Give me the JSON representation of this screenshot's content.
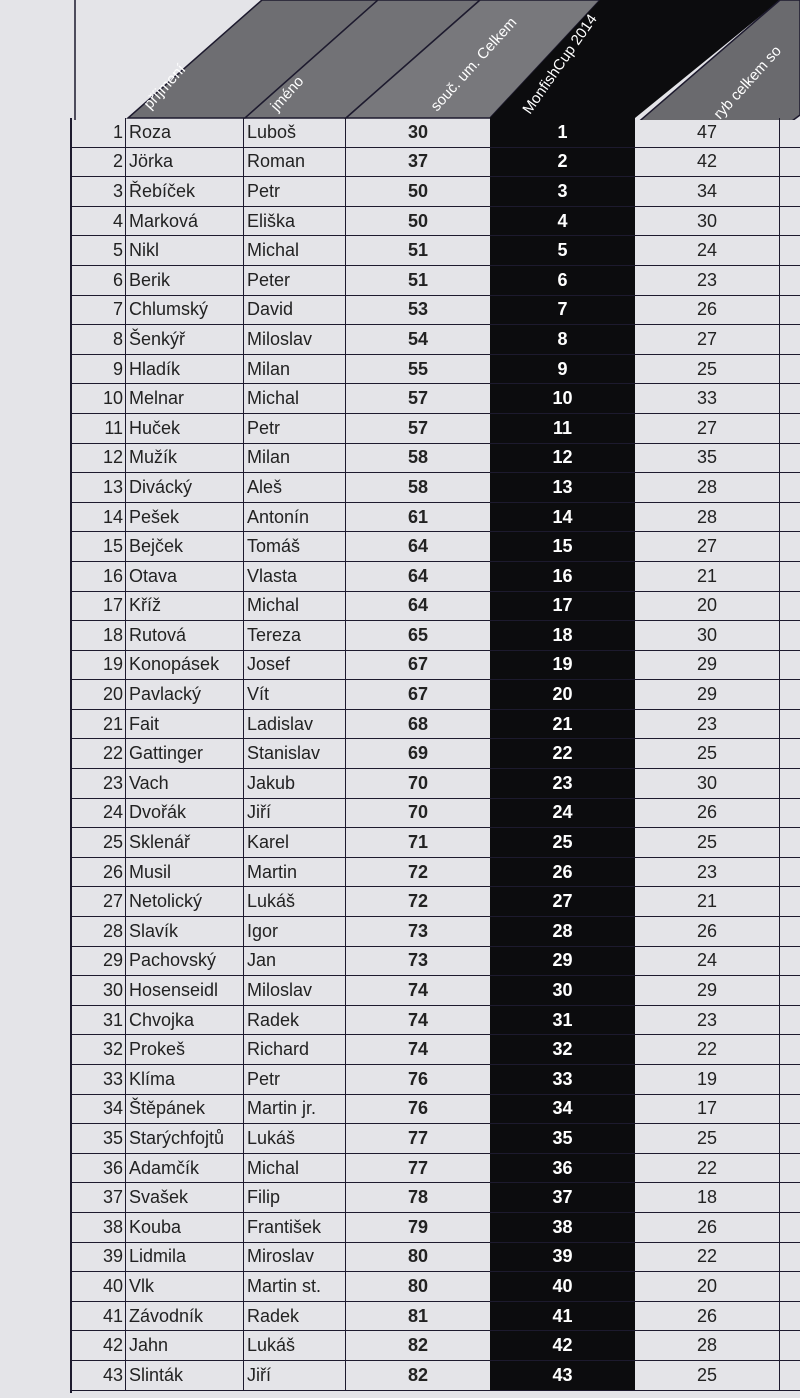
{
  "header": {
    "surname": "příjmení",
    "first_name": "jméno",
    "score_total": "souč. um. Celkem",
    "cup": "MonfishCup 2014",
    "fish_total": "ryb celkem so"
  },
  "colors": {
    "band": "#0c0c0e",
    "header_gray": "#6e6e72",
    "paper": "#e4e4e8"
  },
  "rows": [
    [
      "1",
      "Roza",
      "Luboš",
      "30",
      "1",
      "47"
    ],
    [
      "2",
      "Jörka",
      "Roman",
      "37",
      "2",
      "42"
    ],
    [
      "3",
      "Řebíček",
      "Petr",
      "50",
      "3",
      "34"
    ],
    [
      "4",
      "Marková",
      "Eliška",
      "50",
      "4",
      "30"
    ],
    [
      "5",
      "Nikl",
      "Michal",
      "51",
      "5",
      "24"
    ],
    [
      "6",
      "Berik",
      "Peter",
      "51",
      "6",
      "23"
    ],
    [
      "7",
      "Chlumský",
      "David",
      "53",
      "7",
      "26"
    ],
    [
      "8",
      "Šenkýř",
      "Miloslav",
      "54",
      "8",
      "27"
    ],
    [
      "9",
      "Hladík",
      "Milan",
      "55",
      "9",
      "25"
    ],
    [
      "10",
      "Melnar",
      "Michal",
      "57",
      "10",
      "33"
    ],
    [
      "11",
      "Huček",
      "Petr",
      "57",
      "11",
      "27"
    ],
    [
      "12",
      "Mužík",
      "Milan",
      "58",
      "12",
      "35"
    ],
    [
      "13",
      "Divácký",
      "Aleš",
      "58",
      "13",
      "28"
    ],
    [
      "14",
      "Pešek",
      "Antonín",
      "61",
      "14",
      "28"
    ],
    [
      "15",
      "Bejček",
      "Tomáš",
      "64",
      "15",
      "27"
    ],
    [
      "16",
      "Otava",
      "Vlasta",
      "64",
      "16",
      "21"
    ],
    [
      "17",
      "Kříž",
      "Michal",
      "64",
      "17",
      "20"
    ],
    [
      "18",
      "Rutová",
      "Tereza",
      "65",
      "18",
      "30"
    ],
    [
      "19",
      "Konopásek",
      "Josef",
      "67",
      "19",
      "29"
    ],
    [
      "20",
      "Pavlacký",
      "Vít",
      "67",
      "20",
      "29"
    ],
    [
      "21",
      "Fait",
      "Ladislav",
      "68",
      "21",
      "23"
    ],
    [
      "22",
      "Gattinger",
      "Stanislav",
      "69",
      "22",
      "25"
    ],
    [
      "23",
      "Vach",
      "Jakub",
      "70",
      "23",
      "30"
    ],
    [
      "24",
      "Dvořák",
      "Jiří",
      "70",
      "24",
      "26"
    ],
    [
      "25",
      "Sklenář",
      "Karel",
      "71",
      "25",
      "25"
    ],
    [
      "26",
      "Musil",
      "Martin",
      "72",
      "26",
      "23"
    ],
    [
      "27",
      "Netolický",
      "Lukáš",
      "72",
      "27",
      "21"
    ],
    [
      "28",
      "Slavík",
      "Igor",
      "73",
      "28",
      "26"
    ],
    [
      "29",
      "Pachovský",
      "Jan",
      "73",
      "29",
      "24"
    ],
    [
      "30",
      "Hosenseidl",
      "Miloslav",
      "74",
      "30",
      "29"
    ],
    [
      "31",
      "Chvojka",
      "Radek",
      "74",
      "31",
      "23"
    ],
    [
      "32",
      "Prokeš",
      "Richard",
      "74",
      "32",
      "22"
    ],
    [
      "33",
      "Klíma",
      "Petr",
      "76",
      "33",
      "19"
    ],
    [
      "34",
      "Štěpánek",
      "Martin jr.",
      "76",
      "34",
      "17"
    ],
    [
      "35",
      "Starýchfojtů",
      "Lukáš",
      "77",
      "35",
      "25"
    ],
    [
      "36",
      "Adamčík",
      "Michal",
      "77",
      "36",
      "22"
    ],
    [
      "37",
      "Svašek",
      "Filip",
      "78",
      "37",
      "18"
    ],
    [
      "38",
      "Kouba",
      "František",
      "79",
      "38",
      "26"
    ],
    [
      "39",
      "Lidmila",
      "Miroslav",
      "80",
      "39",
      "22"
    ],
    [
      "40",
      "Vlk",
      "Martin st.",
      "80",
      "40",
      "20"
    ],
    [
      "41",
      "Závodník",
      "Radek",
      "81",
      "41",
      "26"
    ],
    [
      "42",
      "Jahn",
      "Lukáš",
      "82",
      "42",
      "28"
    ],
    [
      "43",
      "Slinták",
      "Jiří",
      "82",
      "43",
      "25"
    ]
  ]
}
